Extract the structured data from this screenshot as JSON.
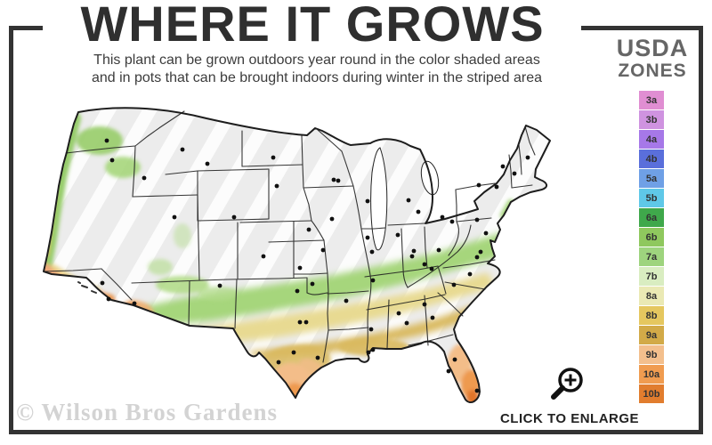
{
  "header": {
    "title": "WHERE IT GROWS",
    "subtitle_line1": "This plant can be grown outdoors year round in the color shaded areas",
    "subtitle_line2": "and in pots that can be brought indoors during winter in the striped area"
  },
  "legend": {
    "title_line1": "USDA",
    "title_line2": "ZONES",
    "zones": [
      {
        "label": "3a",
        "color": "#e08ed2"
      },
      {
        "label": "3b",
        "color": "#cf93e0"
      },
      {
        "label": "4a",
        "color": "#a678e8"
      },
      {
        "label": "4b",
        "color": "#5a6fdb"
      },
      {
        "label": "5a",
        "color": "#6fa0e6"
      },
      {
        "label": "5b",
        "color": "#5fc8e8"
      },
      {
        "label": "6a",
        "color": "#3fa84b"
      },
      {
        "label": "6b",
        "color": "#8fc85e"
      },
      {
        "label": "7a",
        "color": "#9ed47e"
      },
      {
        "label": "7b",
        "color": "#d9edc1"
      },
      {
        "label": "8a",
        "color": "#eae9b4"
      },
      {
        "label": "8b",
        "color": "#e5c75f"
      },
      {
        "label": "9a",
        "color": "#d2aa48"
      },
      {
        "label": "9b",
        "color": "#f3bf8d"
      },
      {
        "label": "10a",
        "color": "#f09c50"
      },
      {
        "label": "10b",
        "color": "#e17d2e"
      }
    ]
  },
  "map": {
    "name": "USDA plant hardiness zone map of the continental United States",
    "colors": {
      "striped_base_gray": "#ececec",
      "stripe_white": "#ffffff",
      "outline_black": "#1d1d1d",
      "city_dot_black": "#111111",
      "zone_green": "#a6d67c",
      "zone_yellow": "#e8da92",
      "zone_gold": "#d9b95e",
      "zone_peach": "#f3bd89",
      "zone_orange": "#ee9a50",
      "zone_deep_orange": "#e0752a"
    }
  },
  "enlarge": {
    "label": "CLICK TO ENLARGE"
  },
  "watermark": {
    "text": "© Wilson Bros Gardens"
  },
  "frame": {
    "color": "#333333"
  }
}
